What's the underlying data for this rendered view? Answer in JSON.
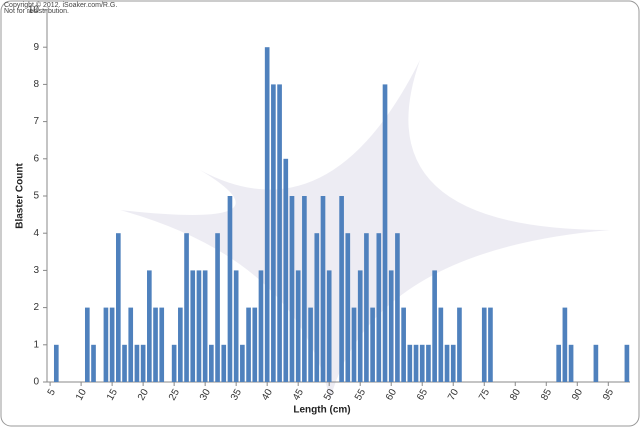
{
  "header": {
    "copyright": "Copyright © 2012. iSoaker.com/R.G.",
    "note": "Not for redistribution."
  },
  "chart_data": {
    "type": "bar",
    "x_label": "Length (cm)",
    "y_label": "Blaster Count",
    "color": "#4f81bd",
    "x": [
      6,
      11,
      12,
      14,
      15,
      16,
      17,
      18,
      19,
      20,
      21,
      22,
      23,
      25,
      26,
      27,
      28,
      29,
      30,
      31,
      32,
      33,
      34,
      35,
      36,
      37,
      38,
      39,
      40,
      41,
      42,
      43,
      44,
      45,
      46,
      47,
      48,
      49,
      50,
      52,
      53,
      54,
      55,
      56,
      57,
      58,
      59,
      60,
      61,
      62,
      63,
      64,
      65,
      66,
      67,
      68,
      69,
      70,
      71,
      75,
      76,
      87,
      88,
      89,
      93,
      98
    ],
    "values": [
      1,
      2,
      1,
      2,
      2,
      4,
      1,
      2,
      1,
      1,
      3,
      2,
      2,
      1,
      2,
      4,
      3,
      3,
      3,
      1,
      4,
      1,
      5,
      3,
      1,
      2,
      2,
      3,
      9,
      8,
      8,
      6,
      5,
      3,
      5,
      2,
      4,
      5,
      3,
      5,
      4,
      2,
      3,
      4,
      2,
      4,
      8,
      3,
      4,
      2,
      1,
      1,
      1,
      1,
      3,
      2,
      1,
      1,
      2,
      2,
      2,
      1,
      2,
      1,
      1,
      1
    ],
    "xlim": [
      4.5,
      98.5
    ],
    "xticks": [
      5,
      10,
      15,
      20,
      25,
      30,
      35,
      40,
      45,
      50,
      55,
      60,
      65,
      70,
      75,
      80,
      85,
      90,
      95
    ],
    "ylim": [
      0,
      10
    ],
    "yticks": [
      0,
      1,
      2,
      3,
      4,
      5,
      6,
      7,
      8,
      9,
      10
    ],
    "grid": false
  }
}
